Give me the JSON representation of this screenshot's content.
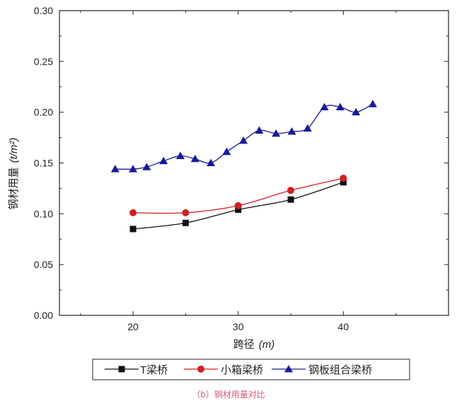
{
  "chart_data": {
    "type": "line",
    "title": "",
    "xlabel_main": "跨径",
    "xlabel_unit": "(m)",
    "ylabel_main": "钢材用量",
    "ylabel_unit": "(t/m²)",
    "xlim": [
      13,
      50
    ],
    "ylim": [
      0,
      0.3
    ],
    "xticks": [
      20,
      30,
      40
    ],
    "yticks": [
      0.0,
      0.05,
      0.1,
      0.15,
      0.2,
      0.25,
      0.3
    ],
    "ytick_labels": [
      "0.00",
      "0.05",
      "0.10",
      "0.15",
      "0.20",
      "0.25",
      "0.30"
    ],
    "legend_position": "bottom",
    "series": [
      {
        "name": "T梁桥",
        "color": "#111111",
        "marker": "square",
        "x": [
          20,
          25,
          30,
          35,
          40
        ],
        "y": [
          0.085,
          0.091,
          0.104,
          0.114,
          0.131
        ]
      },
      {
        "name": "小箱梁桥",
        "color": "#d02020",
        "marker": "circle",
        "x": [
          20,
          25,
          30,
          35,
          40
        ],
        "y": [
          0.101,
          0.101,
          0.108,
          0.123,
          0.135
        ]
      },
      {
        "name": "钢板组合梁桥",
        "color": "#1a1a9a",
        "marker": "triangle",
        "x": [
          18.3,
          20.0,
          21.3,
          22.9,
          24.5,
          25.9,
          27.4,
          28.9,
          30.5,
          32.0,
          33.6,
          35.1,
          36.6,
          38.2,
          39.7,
          41.2,
          42.8
        ],
        "y": [
          0.144,
          0.144,
          0.146,
          0.152,
          0.157,
          0.154,
          0.15,
          0.161,
          0.172,
          0.182,
          0.179,
          0.181,
          0.184,
          0.205,
          0.205,
          0.2,
          0.208
        ]
      }
    ]
  },
  "caption": "（b）钢材用量对比"
}
